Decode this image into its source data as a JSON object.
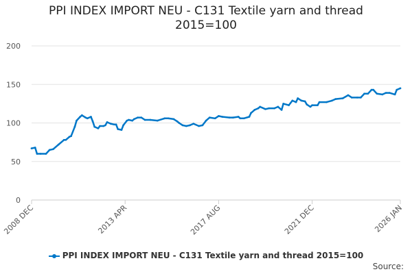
{
  "chart_data": {
    "type": "line",
    "title": "PPI INDEX IMPORT NEU - C131 Textile yarn and thread 2015=100",
    "title_lines": [
      "PPI INDEX IMPORT NEU - C131 Textile yarn and thread",
      "2015=100"
    ],
    "xlabel": "",
    "ylabel": "",
    "x_unit": "months since 2008 DEC",
    "xlim": [
      0,
      205
    ],
    "ylim": [
      0,
      200
    ],
    "y_ticks": [
      0,
      50,
      100,
      150,
      200
    ],
    "x_ticks": [
      {
        "x": 0,
        "label": "2008 DEC"
      },
      {
        "x": 52,
        "label": "2013 APR"
      },
      {
        "x": 104,
        "label": "2017 AUG"
      },
      {
        "x": 156,
        "label": "2021 DEC"
      },
      {
        "x": 205,
        "label": "2026 JAN"
      }
    ],
    "grid": true,
    "legend_position": "bottom",
    "series": [
      {
        "name": "PPI INDEX IMPORT NEU - C131 Textile yarn and thread 2015=100",
        "color": "#0077c8",
        "x": [
          0,
          2,
          3,
          5,
          8,
          10,
          12,
          15,
          18,
          19,
          21,
          22,
          24,
          25,
          27,
          28,
          30,
          31,
          33,
          34,
          35,
          37,
          38,
          40,
          41,
          42,
          44,
          46,
          47,
          48,
          50,
          51,
          53,
          54,
          56,
          57,
          59,
          61,
          63,
          66,
          70,
          74,
          76,
          79,
          81,
          82,
          84,
          86,
          88,
          90,
          93,
          95,
          97,
          99,
          102,
          104,
          106,
          110,
          112,
          115,
          116,
          118,
          121,
          122,
          124,
          126,
          127,
          130,
          132,
          135,
          137,
          139,
          140,
          143,
          145,
          147,
          148,
          150,
          152,
          153,
          155,
          156,
          159,
          160,
          164,
          167,
          169,
          173,
          176,
          178,
          181,
          183,
          185,
          187,
          189,
          190,
          192,
          195,
          197,
          199,
          202,
          203,
          205
        ],
        "values": [
          67,
          68,
          60,
          60,
          60,
          65,
          66,
          72,
          78,
          78,
          82,
          83,
          95,
          103,
          108,
          110,
          107,
          106,
          108,
          102,
          95,
          93,
          96,
          96,
          97,
          101,
          99,
          98,
          98,
          92,
          91,
          97,
          103,
          104,
          103,
          105,
          107,
          107,
          104,
          104,
          103,
          106,
          106,
          105,
          102,
          100,
          97,
          96,
          97,
          99,
          96,
          97,
          103,
          107,
          106,
          109,
          108,
          107,
          107,
          108,
          106,
          106,
          108,
          113,
          117,
          119,
          121,
          118,
          119,
          119,
          121,
          117,
          125,
          123,
          129,
          127,
          132,
          129,
          128,
          124,
          121,
          123,
          123,
          127,
          127,
          129,
          131,
          132,
          136,
          133,
          133,
          133,
          138,
          138,
          143,
          143,
          138,
          137,
          139,
          139,
          137,
          143,
          145
        ]
      }
    ]
  },
  "source_label": "Source:"
}
